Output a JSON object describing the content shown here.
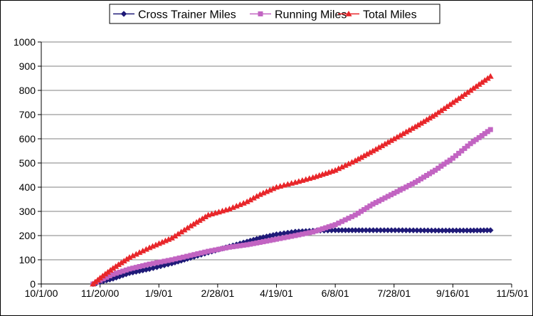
{
  "chart_data": {
    "type": "line",
    "title": "",
    "xlabel": "",
    "ylabel": "",
    "x_ticks": [
      "10/1/00",
      "11/20/00",
      "1/9/01",
      "2/28/01",
      "4/19/01",
      "6/8/01",
      "7/28/01",
      "9/16/01",
      "11/5/01"
    ],
    "x_range": [
      "10/1/00",
      "11/5/01"
    ],
    "ylim": [
      0,
      1000
    ],
    "y_ticks": [
      0,
      100,
      200,
      300,
      400,
      500,
      600,
      700,
      800,
      900,
      1000
    ],
    "grid": "horizontal",
    "legend_position": "top",
    "series": [
      {
        "name": "Cross Trainer Miles",
        "color": "#1f1a78",
        "marker": "diamond",
        "x": [
          "11/14/00",
          "11/20/00",
          "12/1/00",
          "12/15/00",
          "1/1/01",
          "1/20/01",
          "2/5/01",
          "2/20/01",
          "3/10/01",
          "3/25/01",
          "4/5/01",
          "4/19/01",
          "5/5/01",
          "5/20/01",
          "6/8/01",
          "7/1/01",
          "8/1/01",
          "9/1/01",
          "10/1/01",
          "10/18/01"
        ],
        "y": [
          0,
          8,
          22,
          45,
          62,
          85,
          108,
          130,
          155,
          175,
          190,
          205,
          216,
          220,
          222,
          222,
          222,
          221,
          221,
          222
        ]
      },
      {
        "name": "Running Miles",
        "color": "#c264c2",
        "marker": "square",
        "x": [
          "11/14/00",
          "11/20/00",
          "12/1/00",
          "12/15/00",
          "1/1/01",
          "1/20/01",
          "2/5/01",
          "2/20/01",
          "3/10/01",
          "3/25/01",
          "4/5/01",
          "4/19/01",
          "5/5/01",
          "5/20/01",
          "6/8/01",
          "6/25/01",
          "7/10/01",
          "7/28/01",
          "8/15/01",
          "9/1/01",
          "9/16/01",
          "10/1/01",
          "10/18/01"
        ],
        "y": [
          0,
          15,
          40,
          62,
          82,
          100,
          118,
          135,
          152,
          162,
          172,
          185,
          200,
          215,
          245,
          285,
          330,
          375,
          420,
          470,
          520,
          580,
          638
        ]
      },
      {
        "name": "Total Miles",
        "color": "#e8262a",
        "marker": "triangle",
        "x": [
          "11/14/00",
          "11/20/00",
          "12/1/00",
          "12/15/00",
          "1/1/01",
          "1/20/01",
          "2/5/01",
          "2/20/01",
          "3/10/01",
          "3/25/01",
          "4/5/01",
          "4/19/01",
          "5/5/01",
          "5/20/01",
          "6/8/01",
          "6/25/01",
          "7/10/01",
          "7/28/01",
          "8/15/01",
          "9/1/01",
          "9/16/01",
          "10/1/01",
          "10/18/01"
        ],
        "y": [
          0,
          25,
          65,
          110,
          150,
          190,
          240,
          285,
          310,
          340,
          370,
          400,
          420,
          440,
          470,
          510,
          550,
          600,
          650,
          700,
          750,
          800,
          858
        ]
      }
    ]
  }
}
